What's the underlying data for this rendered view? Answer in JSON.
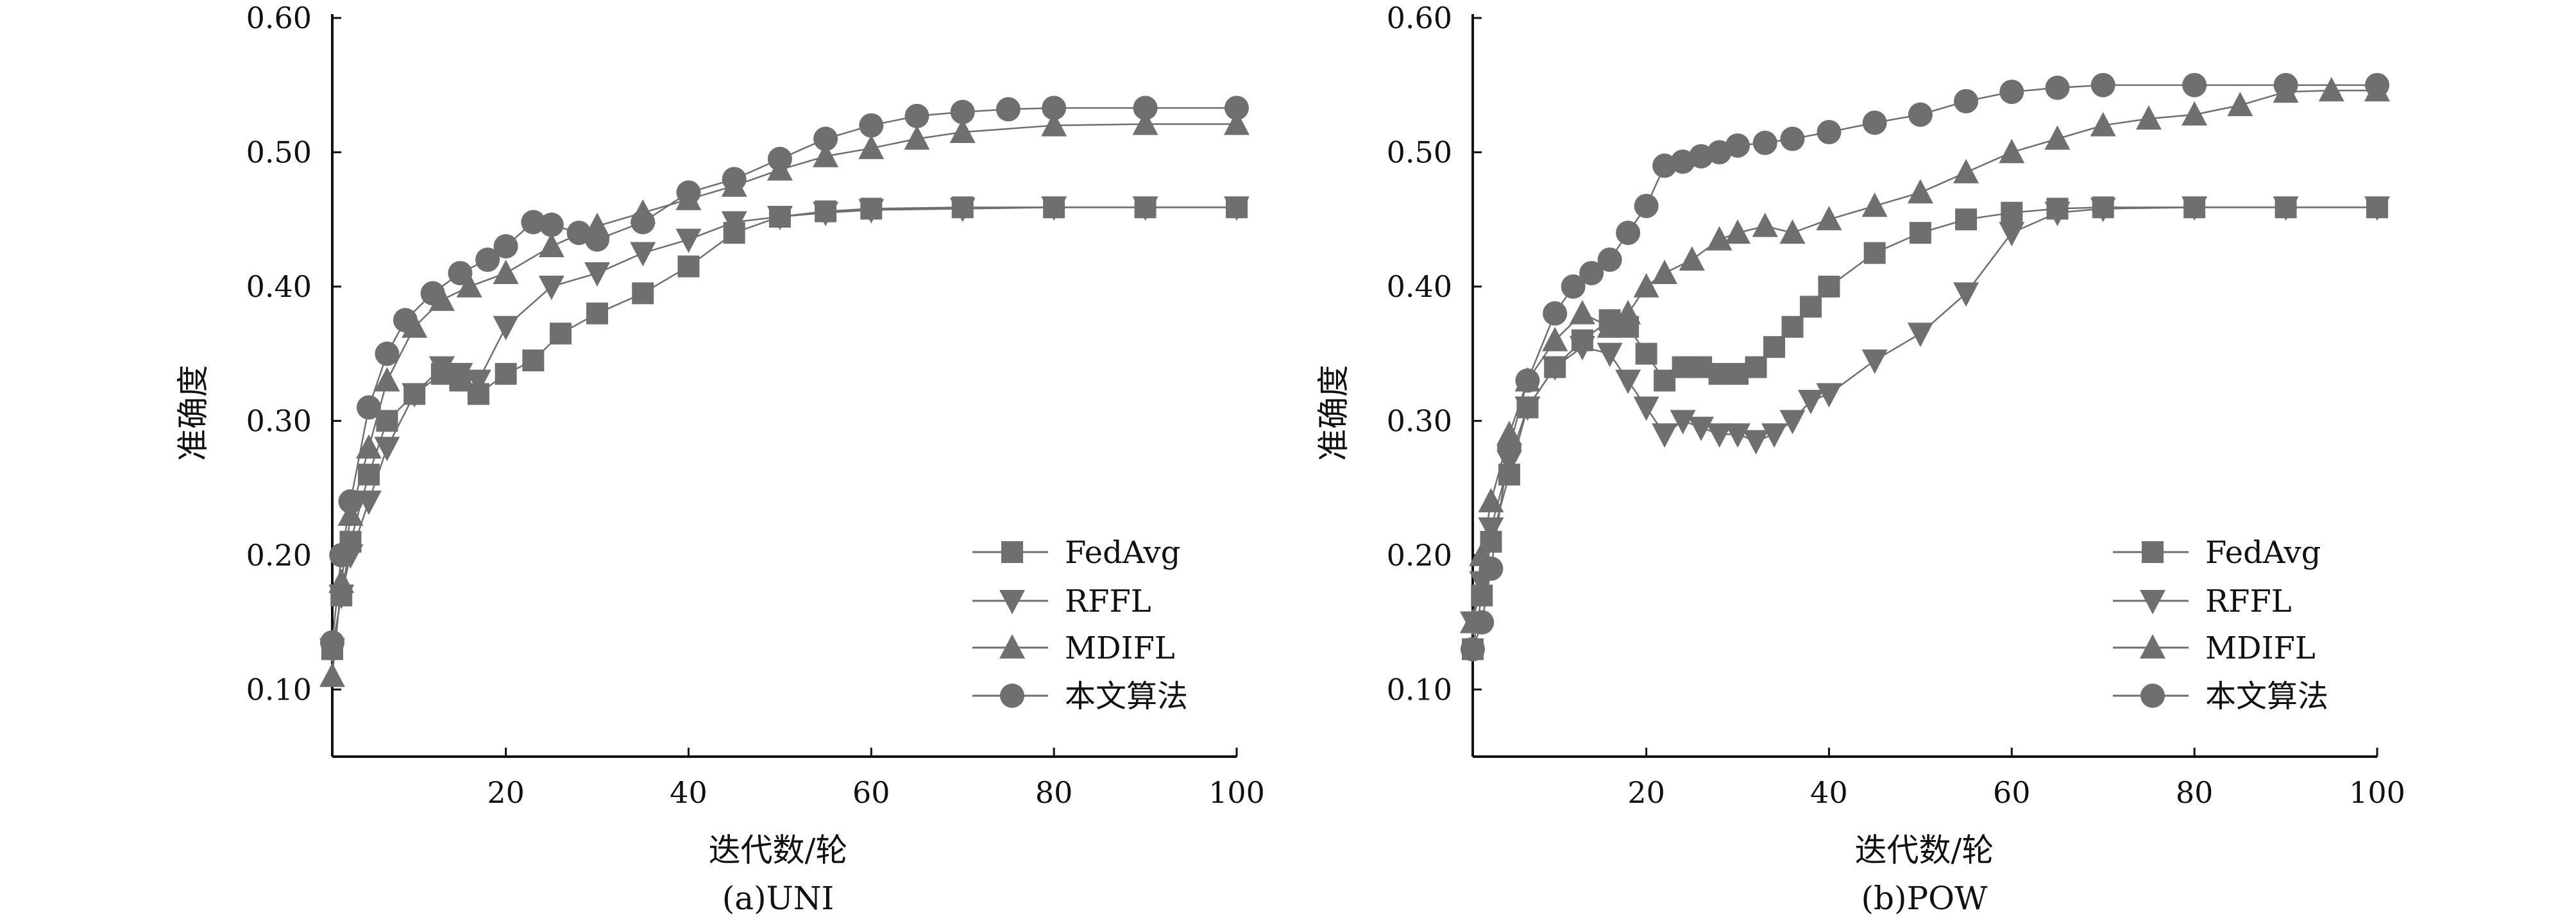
{
  "figure": {
    "captions": [
      "(a)UNI",
      "(b)POW"
    ]
  },
  "chart_data": [
    {
      "type": "line",
      "caption": "(a)UNI",
      "xlabel": "迭代数/轮",
      "ylabel": "准确度",
      "xlim": [
        1,
        100
      ],
      "ylim": [
        0.05,
        0.6
      ],
      "xticks": [
        20,
        40,
        60,
        80,
        100
      ],
      "yticks": [
        0.1,
        0.2,
        0.3,
        0.4,
        0.5,
        0.6
      ],
      "ytick_labels": [
        "0.10",
        "0.20",
        "0.30",
        "0.40",
        "0.50",
        "0.60"
      ],
      "grid": false,
      "legend_position": "bottom-right",
      "marker_color": "#6f6f6f",
      "series": [
        {
          "name": "FedAvg",
          "marker": "square",
          "x": [
            1,
            2,
            3,
            5,
            7,
            10,
            13,
            15,
            17,
            20,
            23,
            26,
            30,
            35,
            40,
            45,
            50,
            55,
            60,
            70,
            80,
            90,
            100
          ],
          "y": [
            0.13,
            0.17,
            0.21,
            0.26,
            0.3,
            0.32,
            0.335,
            0.33,
            0.32,
            0.335,
            0.345,
            0.365,
            0.38,
            0.395,
            0.415,
            0.44,
            0.452,
            0.456,
            0.458,
            0.459,
            0.459,
            0.459,
            0.459
          ]
        },
        {
          "name": "RFFL",
          "marker": "triangle-down",
          "x": [
            1,
            2,
            3,
            5,
            7,
            10,
            13,
            15,
            17,
            20,
            25,
            30,
            35,
            40,
            45,
            50,
            55,
            60,
            70,
            80,
            90,
            100
          ],
          "y": [
            0.13,
            0.17,
            0.2,
            0.24,
            0.28,
            0.32,
            0.34,
            0.335,
            0.33,
            0.37,
            0.4,
            0.41,
            0.425,
            0.435,
            0.448,
            0.452,
            0.455,
            0.457,
            0.458,
            0.459,
            0.459,
            0.459
          ]
        },
        {
          "name": "MDIFL",
          "marker": "triangle-up",
          "x": [
            1,
            2,
            3,
            5,
            7,
            10,
            13,
            16,
            20,
            25,
            30,
            35,
            40,
            45,
            50,
            55,
            60,
            65,
            70,
            80,
            90,
            100
          ],
          "y": [
            0.11,
            0.18,
            0.23,
            0.28,
            0.33,
            0.37,
            0.39,
            0.4,
            0.41,
            0.43,
            0.445,
            0.455,
            0.465,
            0.475,
            0.487,
            0.497,
            0.503,
            0.51,
            0.515,
            0.52,
            0.521,
            0.521
          ]
        },
        {
          "name": "本文算法",
          "marker": "circle",
          "x": [
            1,
            2,
            3,
            5,
            7,
            9,
            12,
            15,
            18,
            20,
            23,
            25,
            28,
            30,
            35,
            40,
            45,
            50,
            55,
            60,
            65,
            70,
            75,
            80,
            90,
            100
          ],
          "y": [
            0.135,
            0.2,
            0.24,
            0.31,
            0.35,
            0.375,
            0.395,
            0.41,
            0.42,
            0.43,
            0.448,
            0.446,
            0.44,
            0.435,
            0.448,
            0.47,
            0.48,
            0.495,
            0.51,
            0.52,
            0.527,
            0.53,
            0.532,
            0.533,
            0.533,
            0.533
          ]
        }
      ]
    },
    {
      "type": "line",
      "caption": "(b)POW",
      "xlabel": "迭代数/轮",
      "ylabel": "准确度",
      "xlim": [
        1,
        100
      ],
      "ylim": [
        0.05,
        0.6
      ],
      "xticks": [
        20,
        40,
        60,
        80,
        100
      ],
      "yticks": [
        0.1,
        0.2,
        0.3,
        0.4,
        0.5,
        0.6
      ],
      "ytick_labels": [
        "0.10",
        "0.20",
        "0.30",
        "0.40",
        "0.50",
        "0.60"
      ],
      "grid": false,
      "legend_position": "bottom-right",
      "marker_color": "#6f6f6f",
      "series": [
        {
          "name": "FedAvg",
          "marker": "square",
          "x": [
            1,
            2,
            3,
            5,
            7,
            10,
            13,
            16,
            18,
            20,
            22,
            24,
            26,
            28,
            30,
            32,
            34,
            36,
            38,
            40,
            45,
            50,
            55,
            60,
            65,
            70,
            80,
            90,
            100
          ],
          "y": [
            0.13,
            0.17,
            0.21,
            0.26,
            0.31,
            0.34,
            0.36,
            0.375,
            0.37,
            0.35,
            0.33,
            0.34,
            0.34,
            0.335,
            0.335,
            0.34,
            0.355,
            0.37,
            0.385,
            0.4,
            0.425,
            0.44,
            0.45,
            0.455,
            0.458,
            0.459,
            0.459,
            0.459,
            0.459
          ]
        },
        {
          "name": "RFFL",
          "marker": "triangle-down",
          "x": [
            1,
            2,
            3,
            5,
            7,
            10,
            13,
            16,
            18,
            20,
            22,
            24,
            26,
            28,
            30,
            32,
            34,
            36,
            38,
            40,
            45,
            50,
            55,
            60,
            65,
            70,
            80,
            90,
            100
          ],
          "y": [
            0.15,
            0.18,
            0.22,
            0.27,
            0.31,
            0.34,
            0.355,
            0.35,
            0.33,
            0.31,
            0.29,
            0.3,
            0.295,
            0.29,
            0.29,
            0.285,
            0.29,
            0.3,
            0.315,
            0.32,
            0.345,
            0.365,
            0.395,
            0.44,
            0.455,
            0.458,
            0.459,
            0.459,
            0.459
          ]
        },
        {
          "name": "MDIFL",
          "marker": "triangle-up",
          "x": [
            1,
            2,
            3,
            5,
            7,
            10,
            13,
            16,
            18,
            20,
            22,
            25,
            28,
            30,
            33,
            36,
            40,
            45,
            50,
            55,
            60,
            65,
            70,
            75,
            80,
            85,
            90,
            95,
            100
          ],
          "y": [
            0.15,
            0.2,
            0.24,
            0.29,
            0.33,
            0.36,
            0.38,
            0.37,
            0.38,
            0.4,
            0.41,
            0.42,
            0.435,
            0.44,
            0.445,
            0.44,
            0.45,
            0.46,
            0.47,
            0.485,
            0.5,
            0.51,
            0.52,
            0.525,
            0.528,
            0.535,
            0.545,
            0.546,
            0.546
          ]
        },
        {
          "name": "本文算法",
          "marker": "circle",
          "x": [
            1,
            2,
            3,
            5,
            7,
            10,
            12,
            14,
            16,
            18,
            20,
            22,
            24,
            26,
            28,
            30,
            33,
            36,
            40,
            45,
            50,
            55,
            60,
            65,
            70,
            80,
            90,
            100
          ],
          "y": [
            0.13,
            0.15,
            0.19,
            0.28,
            0.33,
            0.38,
            0.4,
            0.41,
            0.42,
            0.44,
            0.46,
            0.49,
            0.493,
            0.497,
            0.5,
            0.505,
            0.507,
            0.51,
            0.515,
            0.522,
            0.528,
            0.538,
            0.545,
            0.548,
            0.55,
            0.55,
            0.55,
            0.55
          ]
        }
      ]
    }
  ]
}
